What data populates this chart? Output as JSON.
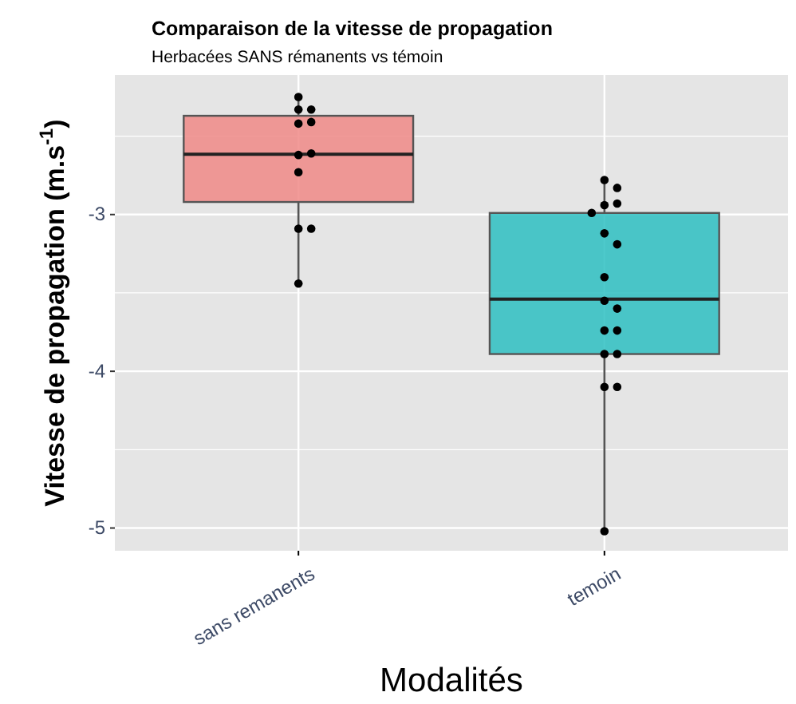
{
  "chart_data": {
    "type": "box",
    "title": "Comparaison de la vitesse de propagation",
    "subtitle": "Herbacées SANS rémanents vs témoin",
    "xlabel": "Modalités",
    "ylabel": "Vitesse de propagation (m.s$^{-1}$)",
    "categories": [
      "sans remanents",
      "temoin"
    ],
    "colors": [
      "#f08a87",
      "#2ec0c2"
    ],
    "boxes": [
      {
        "low": -3.44,
        "q1": -2.92,
        "median": -2.615,
        "q3": -2.37,
        "high": -2.25
      },
      {
        "low": -5.02,
        "q1": -3.89,
        "median": -3.54,
        "q3": -2.99,
        "high": -2.78
      }
    ],
    "series": [
      {
        "type": "scatter",
        "color": "#000000",
        "x": [
          "sans remanents",
          "sans remanents",
          "sans remanents",
          "sans remanents",
          "sans remanents",
          "sans remanents",
          "sans remanents",
          "sans remanents",
          "sans remanents",
          "sans remanents",
          "sans remanents",
          "temoin",
          "temoin",
          "temoin",
          "temoin",
          "temoin",
          "temoin",
          "temoin",
          "temoin",
          "temoin",
          "temoin",
          "temoin",
          "temoin",
          "temoin",
          "temoin",
          "temoin",
          "temoin",
          "temoin"
        ],
        "values": [
          -2.33,
          -2.42,
          -2.25,
          -2.33,
          -2.41,
          -2.62,
          -2.61,
          -2.73,
          -3.09,
          -3.09,
          -3.44,
          -2.78,
          -2.83,
          -2.94,
          -2.93,
          -2.99,
          -3.12,
          -3.19,
          -3.4,
          -3.55,
          -3.6,
          -3.74,
          -3.74,
          -3.89,
          -3.89,
          -4.1,
          -4.1,
          -5.02
        ]
      }
    ],
    "ylim": [
      -5.145,
      -2.11
    ],
    "yticks": [
      {
        "value": -5,
        "label": "-5"
      },
      {
        "value": -4.5,
        "label": null
      },
      {
        "value": -4,
        "label": "-4"
      },
      {
        "value": -3.5,
        "label": null
      },
      {
        "value": -3,
        "label": "-3"
      },
      {
        "value": -2.5,
        "label": null
      }
    ],
    "grid": true,
    "marker": "circle"
  }
}
